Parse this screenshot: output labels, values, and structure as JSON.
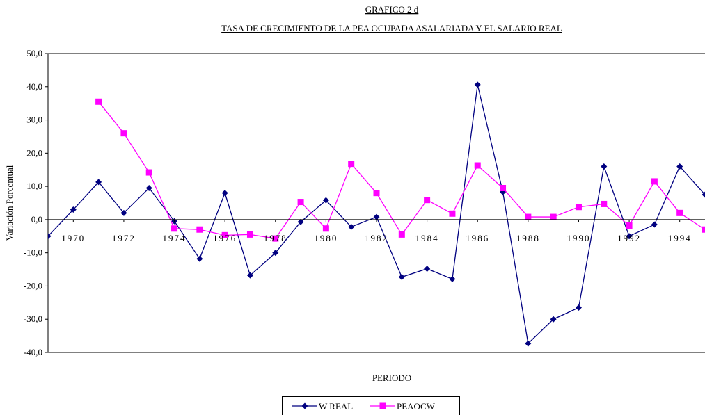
{
  "chart_data": {
    "type": "line",
    "title": "GRAFICO  2 d",
    "subtitle": "TASA DE CRECIMIENTO  DE LA PEA OCUPADA ASALARIADA Y EL SALARIO REAL",
    "x_label": "PERIODO",
    "y_label": "Variación  Porcentual",
    "x": [
      1969,
      1970,
      1971,
      1972,
      1973,
      1974,
      1975,
      1976,
      1977,
      1978,
      1979,
      1980,
      1981,
      1982,
      1983,
      1984,
      1985,
      1986,
      1987,
      1988,
      1989,
      1990,
      1991,
      1992,
      1993,
      1994,
      1995
    ],
    "series": [
      {
        "name": "W REAL",
        "color": "#000080",
        "marker": "diamond",
        "values": [
          -5,
          3,
          11.3,
          2,
          9.5,
          -0.5,
          -11.8,
          8,
          -16.8,
          -10,
          -0.7,
          5.8,
          -2.2,
          0.8,
          -17.3,
          -14.8,
          -17.9,
          40.6,
          8.3,
          -37.3,
          -30,
          -26.5,
          16,
          -5,
          -1.5,
          16,
          7.5
        ]
      },
      {
        "name": "PEAOCW",
        "color": "#ff00ff",
        "marker": "square",
        "values": [
          null,
          null,
          35.5,
          26,
          14.2,
          -2.7,
          -3,
          -4.7,
          -4.5,
          -5.7,
          5.3,
          -2.7,
          16.8,
          8,
          -4.5,
          5.9,
          1.8,
          16.3,
          9.5,
          0.8,
          0.8,
          3.8,
          4.7,
          -1.8,
          11.5,
          2,
          -3
        ]
      }
    ],
    "xlim": [
      1969,
      1995
    ],
    "xticks": [
      1970,
      1972,
      1974,
      1976,
      1978,
      1980,
      1982,
      1984,
      1986,
      1988,
      1990,
      1992,
      1994
    ],
    "ylim": [
      -40,
      50
    ],
    "yticks": [
      {
        "value": -40,
        "label": "-40,0"
      },
      {
        "value": -30,
        "label": "-30,0"
      },
      {
        "value": -20,
        "label": "-20,0"
      },
      {
        "value": -10,
        "label": "-10,0"
      },
      {
        "value": 0,
        "label": "0,0"
      },
      {
        "value": 10,
        "label": "10,0"
      },
      {
        "value": 20,
        "label": "20,0"
      },
      {
        "value": 30,
        "label": "30,0"
      },
      {
        "value": 40,
        "label": "40,0"
      },
      {
        "value": 50,
        "label": "50,0"
      }
    ],
    "legend": "bottom"
  }
}
